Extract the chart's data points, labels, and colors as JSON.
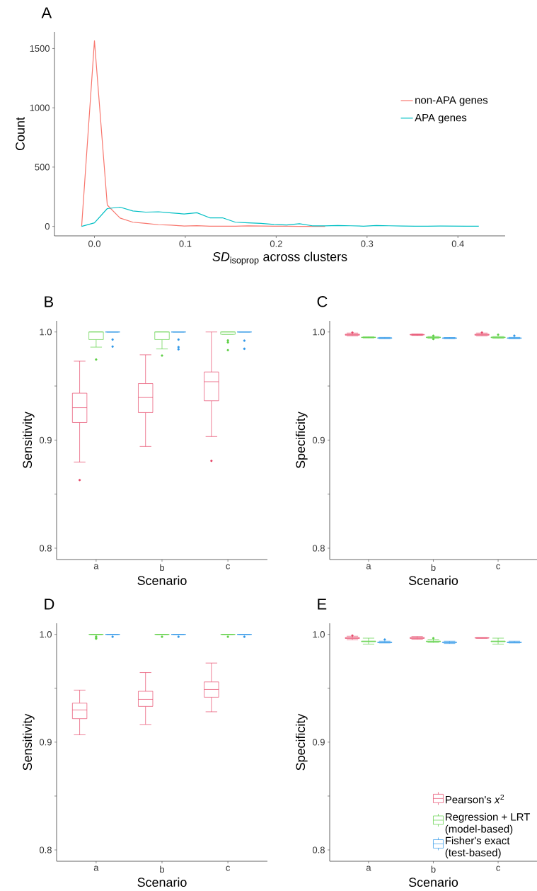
{
  "chart_data": [
    {
      "type": "line",
      "title": "A",
      "xlabel": "*SD*$_{isoprop}$ across clusters",
      "ylabel": "Count",
      "xlim": [
        -0.044,
        0.452
      ],
      "ylim": [
        -80,
        1640
      ],
      "xticks": [
        {
          "value": 0,
          "label": "0.0"
        },
        0.1,
        0.2,
        0.3,
        0.4
      ],
      "yticks": [
        0,
        500,
        1000,
        1500
      ],
      "legend": "right",
      "x": [
        -0.0141,
        0,
        0.0141,
        0.0282,
        0.0423,
        0.0564,
        0.0705,
        0.0846,
        0.0987,
        0.1128,
        0.1269,
        0.141,
        0.1551,
        0.1692,
        0.1833,
        0.1974,
        0.2115,
        0.2256,
        0.2397,
        0.2538,
        0.2679,
        0.282,
        0.2961,
        0.3102,
        0.3243,
        0.3384,
        0.3525,
        0.3666,
        0.3807,
        0.3948,
        0.4089,
        0.423
      ],
      "series": [
        {
          "name": "non-APA genes",
          "color": "#f8766d",
          "values": [
            0,
            1565,
            180,
            70,
            35,
            25,
            14,
            10,
            3,
            6,
            1,
            1,
            1,
            4,
            3,
            1,
            1,
            0,
            0,
            0,
            null,
            null,
            null,
            null,
            null,
            null,
            null,
            null,
            null,
            null,
            null,
            null
          ]
        },
        {
          "name": "APA genes",
          "color": "#00bfc4",
          "values": [
            0,
            30,
            150,
            162,
            130,
            120,
            123,
            113,
            105,
            115,
            72,
            72,
            35,
            30,
            25,
            16,
            12,
            22,
            5,
            5,
            7,
            5,
            2,
            7,
            5,
            3,
            2,
            2,
            3,
            2,
            1,
            1
          ]
        }
      ]
    },
    {
      "type": "box",
      "title": "B",
      "xlabel": "Scenario",
      "ylabel": "Sensitivity",
      "categories": [
        "a",
        "b",
        "c"
      ],
      "ylim": [
        0.7895,
        1.0103
      ],
      "yticks": [
        0.8,
        {
          "value": 0.85,
          "label": null
        },
        0.9,
        {
          "value": 0.95,
          "label": null
        },
        {
          "value": 1,
          "label": "1.0"
        }
      ],
      "series": [
        {
          "color": "#e64a6b",
          "boxes": [
            {
              "low": 0.8797,
              "q1": 0.9163,
              "median": 0.93,
              "q3": 0.9434,
              "high": 0.973,
              "outliers": [
                0.863
              ]
            },
            {
              "low": 0.8941,
              "q1": 0.9255,
              "median": 0.9394,
              "q3": 0.9523,
              "high": 0.9789
            },
            {
              "low": 0.9033,
              "q1": 0.9364,
              "median": 0.954,
              "q3": 0.963,
              "high": 1.0,
              "outliers": [
                0.8808
              ]
            }
          ]
        },
        {
          "color": "#5ecf45",
          "boxes": [
            {
              "low": 0.986,
              "q1": 0.993,
              "median": 1.0,
              "q3": 1.0,
              "high": 1.0,
              "outliers": [
                0.9745
              ]
            },
            {
              "low": 0.9843,
              "q1": 0.993,
              "median": 1.0,
              "q3": 1.0,
              "high": 1.0,
              "outliers": [
                0.9782
              ]
            },
            {
              "low": 0.9978,
              "q1": 0.9978,
              "median": 1.0,
              "q3": 1.0,
              "high": 1.0,
              "outliers": [
                0.9922,
                0.9904,
                0.9832
              ]
            }
          ]
        },
        {
          "color": "#2f97e8",
          "boxes": [
            {
              "low": 1.0,
              "q1": 1.0,
              "median": 1.0,
              "q3": 1.0,
              "high": 1.0,
              "outliers": [
                0.993,
                0.9865
              ]
            },
            {
              "low": 1.0,
              "q1": 1.0,
              "median": 1.0,
              "q3": 1.0,
              "high": 1.0,
              "outliers": [
                0.993,
                0.986,
                0.984
              ]
            },
            {
              "low": 1.0,
              "q1": 1.0,
              "median": 1.0,
              "q3": 1.0,
              "high": 1.0,
              "outliers": [
                0.992,
                0.9845
              ]
            }
          ]
        }
      ]
    },
    {
      "type": "box",
      "title": "C",
      "xlabel": "Scenario",
      "ylabel": "Specificity",
      "categories": [
        "a",
        "b",
        "c"
      ],
      "ylim": [
        0.7895,
        1.0103
      ],
      "yticks": [
        0.8,
        {
          "value": 0.85,
          "label": null
        },
        0.9,
        {
          "value": 0.95,
          "label": null
        },
        {
          "value": 1,
          "label": "1.0"
        }
      ],
      "series": [
        {
          "color": "#e64a6b",
          "boxes": [
            {
              "low": 0.9965,
              "q1": 0.997,
              "median": 0.9975,
              "q3": 0.998,
              "high": 0.999,
              "outliers": [
                0.9995
              ]
            },
            {
              "low": 0.9968,
              "q1": 0.9972,
              "median": 0.9975,
              "q3": 0.9978,
              "high": 0.9982
            },
            {
              "low": 0.9965,
              "q1": 0.997,
              "median": 0.9975,
              "q3": 0.998,
              "high": 0.999,
              "outliers": [
                0.9995
              ]
            }
          ]
        },
        {
          "color": "#5ecf45",
          "boxes": [
            {
              "low": 0.9945,
              "q1": 0.9948,
              "median": 0.995,
              "q3": 0.9952,
              "high": 0.9955
            },
            {
              "low": 0.9942,
              "q1": 0.9947,
              "median": 0.995,
              "q3": 0.9953,
              "high": 0.9958,
              "outliers": [
                0.9965,
                0.9935
              ]
            },
            {
              "low": 0.9942,
              "q1": 0.9947,
              "median": 0.995,
              "q3": 0.9953,
              "high": 0.9958,
              "outliers": [
                0.9975
              ]
            }
          ]
        },
        {
          "color": "#2f97e8",
          "boxes": [
            {
              "low": 0.9938,
              "q1": 0.9941,
              "median": 0.9944,
              "q3": 0.9947,
              "high": 0.995
            },
            {
              "low": 0.9938,
              "q1": 0.9941,
              "median": 0.9943,
              "q3": 0.9946,
              "high": 0.9949
            },
            {
              "low": 0.9938,
              "q1": 0.9941,
              "median": 0.9943,
              "q3": 0.9946,
              "high": 0.995,
              "outliers": [
                0.9965
              ]
            }
          ]
        }
      ]
    },
    {
      "type": "box",
      "title": "D",
      "xlabel": "Scenario",
      "ylabel": "Sensitivity",
      "categories": [
        "a",
        "b",
        "c"
      ],
      "ylim": [
        0.7895,
        1.0103
      ],
      "yticks": [
        0.8,
        {
          "value": 0.85,
          "label": null
        },
        0.9,
        {
          "value": 0.95,
          "label": null
        },
        {
          "value": 1,
          "label": "1.0"
        }
      ],
      "series": [
        {
          "color": "#e64a6b",
          "boxes": [
            {
              "low": 0.9068,
              "q1": 0.9218,
              "median": 0.9299,
              "q3": 0.9362,
              "high": 0.9483
            },
            {
              "low": 0.9164,
              "q1": 0.9332,
              "median": 0.9397,
              "q3": 0.9472,
              "high": 0.9646
            },
            {
              "low": 0.9282,
              "q1": 0.9417,
              "median": 0.9489,
              "q3": 0.9559,
              "high": 0.9734
            }
          ]
        },
        {
          "color": "#5ecf45",
          "boxes": [
            {
              "low": 1.0,
              "q1": 1.0,
              "median": 1.0,
              "q3": 1.0,
              "high": 1.0,
              "outliers": [
                0.998,
                0.9967,
                0.996
              ]
            },
            {
              "low": 1.0,
              "q1": 1.0,
              "median": 1.0,
              "q3": 1.0,
              "high": 1.0,
              "outliers": [
                0.9978
              ]
            },
            {
              "low": 1.0,
              "q1": 1.0,
              "median": 1.0,
              "q3": 1.0,
              "high": 1.0,
              "outliers": [
                0.9978
              ]
            }
          ]
        },
        {
          "color": "#2f97e8",
          "boxes": [
            {
              "low": 1.0,
              "q1": 1.0,
              "median": 1.0,
              "q3": 1.0,
              "high": 1.0,
              "outliers": [
                0.9978
              ]
            },
            {
              "low": 1.0,
              "q1": 1.0,
              "median": 1.0,
              "q3": 1.0,
              "high": 1.0,
              "outliers": [
                0.9978
              ]
            },
            {
              "low": 1.0,
              "q1": 1.0,
              "median": 1.0,
              "q3": 1.0,
              "high": 1.0,
              "outliers": [
                0.9978
              ]
            }
          ]
        }
      ]
    },
    {
      "type": "box",
      "title": "E",
      "xlabel": "Scenario",
      "ylabel": "Specificity",
      "categories": [
        "a",
        "b",
        "c"
      ],
      "ylim": [
        0.7895,
        1.0103
      ],
      "yticks": [
        0.8,
        {
          "value": 0.85,
          "label": null
        },
        0.9,
        {
          "value": 0.95,
          "label": null
        },
        {
          "value": 1,
          "label": "1.0"
        }
      ],
      "legend": "bottom right",
      "series": [
        {
          "name": "Pearson's *x*$^{2}$",
          "color": "#e64a6b",
          "boxes": [
            {
              "low": 0.995,
              "q1": 0.9962,
              "median": 0.9967,
              "q3": 0.997,
              "high": 0.9983,
              "outliers": [
                0.9989
              ]
            },
            {
              "low": 0.9955,
              "q1": 0.9962,
              "median": 0.9967,
              "q3": 0.9972,
              "high": 0.998
            },
            {
              "low": 0.9964,
              "q1": 0.9966,
              "median": 0.9967,
              "q3": 0.9968,
              "high": 0.997
            }
          ]
        },
        {
          "name": "Regression + LRT (model-based)",
          "color": "#5ecf45",
          "boxes": [
            {
              "low": 0.991,
              "q1": 0.9932,
              "median": 0.9935,
              "q3": 0.9938,
              "high": 0.9965
            },
            {
              "low": 0.9925,
              "q1": 0.9932,
              "median": 0.9935,
              "q3": 0.9938,
              "high": 0.9955,
              "outliers": [
                0.9965
              ]
            },
            {
              "low": 0.991,
              "q1": 0.9932,
              "median": 0.9935,
              "q3": 0.9938,
              "high": 0.9965
            }
          ]
        },
        {
          "name": "Fisher's exact (test-based)",
          "color": "#2f97e8",
          "boxes": [
            {
              "low": 0.992,
              "q1": 0.9923,
              "median": 0.9926,
              "q3": 0.9929,
              "high": 0.9937,
              "outliers": [
                0.9952
              ]
            },
            {
              "low": 0.9915,
              "q1": 0.9923,
              "median": 0.9926,
              "q3": 0.9929,
              "high": 0.9937
            },
            {
              "low": 0.992,
              "q1": 0.9923,
              "median": 0.9926,
              "q3": 0.9929,
              "high": 0.9937
            }
          ]
        }
      ]
    }
  ]
}
